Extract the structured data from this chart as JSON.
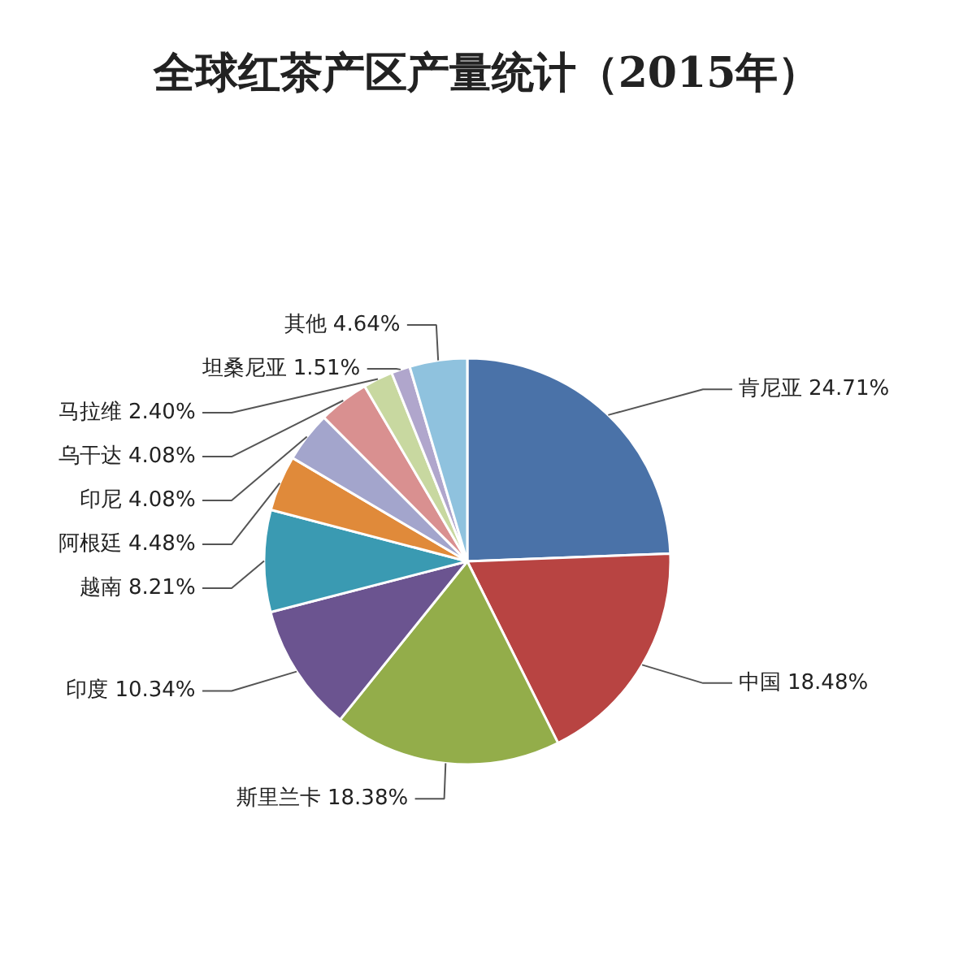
{
  "chart_data": {
    "type": "pie",
    "title": "全球红茶产区产量统计（2015年）",
    "categories": [
      "肯尼亚",
      "中国",
      "斯里兰卡",
      "印度",
      "越南",
      "阿根廷",
      "印尼",
      "乌干达",
      "马拉维",
      "坦桑尼亚",
      "其他"
    ],
    "values": [
      24.71,
      18.48,
      18.38,
      10.34,
      8.21,
      4.48,
      4.08,
      4.08,
      2.4,
      1.51,
      4.64
    ],
    "value_labels": [
      "24.71%",
      "18.48%",
      "18.38%",
      "10.34%",
      "8.21%",
      "4.48%",
      "4.08%",
      "4.08%",
      "2.40%",
      "1.51%",
      "4.64%"
    ],
    "colors": [
      "#4a72a8",
      "#b84442",
      "#93ad4a",
      "#6b5490",
      "#3a9ab2",
      "#e08a3a",
      "#a3a5cc",
      "#d99090",
      "#c8d8a0",
      "#b0a6cc",
      "#8fc2de"
    ]
  }
}
